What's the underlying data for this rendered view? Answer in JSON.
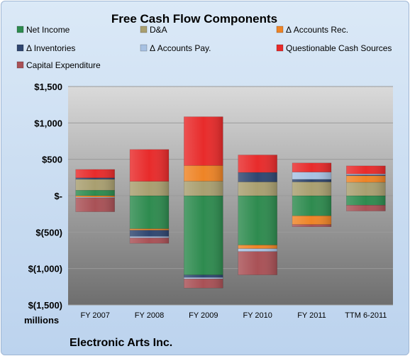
{
  "chart_data": {
    "type": "bar",
    "stacked": true,
    "title": "Free Cash Flow Components",
    "categories": [
      "FY 2007",
      "FY 2008",
      "FY 2009",
      "FY 2010",
      "FY 2011",
      "TTM 6-2011"
    ],
    "series": [
      {
        "name": "Net Income",
        "color": "#2e8b4f",
        "values": [
          76,
          -454,
          -1088,
          -677,
          -276,
          -130
        ]
      },
      {
        "name": "D&A",
        "color": "#a99f70",
        "values": [
          150,
          198,
          200,
          190,
          190,
          185
        ]
      },
      {
        "name": "Δ Accounts Rec.",
        "color": "#ee8426",
        "values": [
          -20,
          -20,
          215,
          -50,
          -120,
          90
        ]
      },
      {
        "name": "Δ Inventories",
        "color": "#2f4670",
        "values": [
          20,
          -85,
          -35,
          130,
          35,
          10
        ]
      },
      {
        "name": "Δ Accounts Pay.",
        "color": "#a7c1e2",
        "values": [
          -10,
          -20,
          -20,
          -40,
          100,
          15
        ]
      },
      {
        "name": "Questionable Cash Sources",
        "color": "#e82b2b",
        "values": [
          115,
          437,
          670,
          240,
          125,
          110
        ]
      },
      {
        "name": "Capital Expenditure",
        "color": "#a95156",
        "values": [
          -190,
          -75,
          -125,
          -320,
          -30,
          -80
        ]
      }
    ],
    "yticks": [
      "$1,500",
      "$1,000",
      "$500",
      "$-",
      "$(500)",
      "$(1,000)",
      "$(1,500)"
    ],
    "ylim": [
      -1500,
      1500
    ],
    "ylabel": "millions",
    "grid": true,
    "legend_position": "top",
    "footer": "Electronic Arts Inc."
  }
}
